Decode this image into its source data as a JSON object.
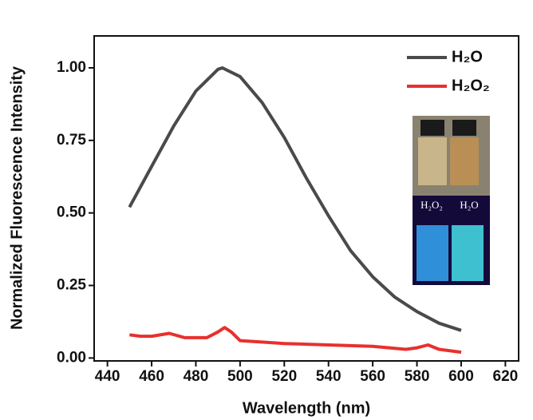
{
  "chart_data": {
    "type": "line",
    "xlabel": "Wavelength (nm)",
    "ylabel": "Normalized Fluorescence Intensity",
    "xlim": [
      434,
      626
    ],
    "ylim": [
      -0.01,
      1.11
    ],
    "xticks": [
      440,
      460,
      480,
      500,
      520,
      540,
      560,
      580,
      600,
      620
    ],
    "yticks": [
      {
        "value": 0,
        "label": "0.00"
      },
      {
        "value": 0.25,
        "label": "0.25"
      },
      {
        "value": 0.5,
        "label": "0.50"
      },
      {
        "value": 0.75,
        "label": "0.75"
      },
      {
        "value": 1,
        "label": "1.00"
      }
    ],
    "legend": "upper right",
    "series": [
      {
        "name": "H₂O",
        "color": "#4a4a4a",
        "x": [
          450,
          460,
          470,
          480,
          490,
          492,
          500,
          510,
          520,
          530,
          540,
          550,
          560,
          570,
          580,
          590,
          600
        ],
        "values": [
          0.52,
          0.66,
          0.8,
          0.92,
          0.995,
          1.0,
          0.97,
          0.88,
          0.76,
          0.62,
          0.49,
          0.37,
          0.28,
          0.21,
          0.16,
          0.12,
          0.095
        ]
      },
      {
        "name": "H₂O₂",
        "color": "#e8302e",
        "x": [
          450,
          455,
          460,
          468,
          475,
          485,
          490,
          493,
          496,
          500,
          510,
          520,
          540,
          560,
          575,
          580,
          585,
          590,
          600
        ],
        "values": [
          0.08,
          0.075,
          0.075,
          0.085,
          0.07,
          0.07,
          0.09,
          0.105,
          0.09,
          0.06,
          0.055,
          0.05,
          0.045,
          0.04,
          0.03,
          0.035,
          0.045,
          0.03,
          0.02
        ]
      }
    ],
    "inset_labels": [
      "H₂O₂",
      "H₂O"
    ]
  }
}
